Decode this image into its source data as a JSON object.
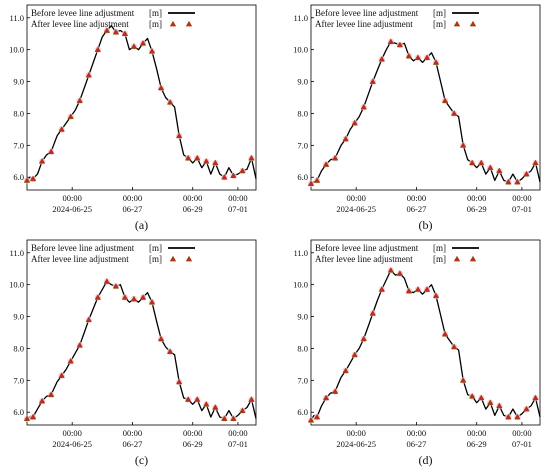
{
  "figure": {
    "panels": [
      "(a)",
      "(b)",
      "(c)",
      "(d)"
    ]
  },
  "chart_data": [
    {
      "type": "line",
      "panel_label": "(a)",
      "panel_letter": "a",
      "legend": {
        "placement": "top-left",
        "entries": [
          {
            "label": "Before levee line adjustment",
            "unit": "[m]",
            "marker": "line",
            "color": "#000000"
          },
          {
            "label": "After levee line adjustment",
            "unit": "[m]",
            "marker": "triangle",
            "color": "#cc2222"
          }
        ]
      },
      "ylim": [
        5.6,
        11.4
      ],
      "yticks": [
        "6.0",
        "7.0",
        "8.0",
        "9.0",
        "10.0",
        "11.0"
      ],
      "xlim": [
        0,
        7.6
      ],
      "xticks": [
        {
          "at": 1.5,
          "time": "00:00",
          "date": "2024-06-25"
        },
        {
          "at": 3.5,
          "time": "00:00",
          "date": "06-27"
        },
        {
          "at": 5.5,
          "time": "00:00",
          "date": "06-29"
        },
        {
          "at": 7.0,
          "time": "00:00",
          "date": "07-01"
        }
      ],
      "grid": false,
      "series": [
        {
          "name": "Before levee line adjustment",
          "style": "line",
          "x": [
            0.0,
            0.1,
            0.2,
            0.35,
            0.5,
            0.65,
            0.8,
            1.0,
            1.15,
            1.3,
            1.45,
            1.6,
            1.75,
            1.9,
            2.05,
            2.2,
            2.35,
            2.5,
            2.65,
            2.8,
            2.95,
            3.1,
            3.25,
            3.4,
            3.55,
            3.7,
            3.85,
            4.0,
            4.15,
            4.3,
            4.45,
            4.6,
            4.75,
            4.9,
            5.05,
            5.2,
            5.35,
            5.5,
            5.65,
            5.8,
            5.95,
            6.1,
            6.25,
            6.4,
            6.55,
            6.7,
            6.85,
            7.0,
            7.15,
            7.3,
            7.45,
            7.6
          ],
          "y": [
            5.9,
            6.0,
            5.95,
            6.1,
            6.5,
            6.7,
            6.8,
            7.3,
            7.5,
            7.7,
            7.9,
            8.1,
            8.4,
            8.8,
            9.2,
            9.6,
            10.0,
            10.4,
            10.6,
            10.75,
            10.55,
            10.6,
            10.5,
            10.0,
            10.1,
            10.0,
            10.2,
            10.35,
            9.95,
            9.4,
            8.8,
            8.5,
            8.35,
            8.2,
            7.3,
            6.7,
            6.6,
            6.45,
            6.6,
            6.3,
            6.5,
            6.1,
            6.45,
            6.1,
            6.0,
            6.3,
            6.05,
            6.1,
            6.2,
            6.25,
            6.6,
            5.95
          ]
        },
        {
          "name": "After levee line adjustment",
          "style": "triangles",
          "x": [
            0.0,
            0.2,
            0.5,
            0.8,
            1.15,
            1.45,
            1.75,
            2.05,
            2.35,
            2.65,
            2.95,
            3.25,
            3.55,
            3.85,
            4.15,
            4.45,
            4.75,
            5.05,
            5.35,
            5.65,
            5.95,
            6.25,
            6.55,
            6.85,
            7.15,
            7.45
          ],
          "y": [
            5.9,
            5.95,
            6.5,
            6.8,
            7.5,
            7.9,
            8.4,
            9.2,
            10.0,
            10.6,
            10.55,
            10.5,
            10.1,
            10.2,
            9.95,
            8.8,
            8.35,
            7.3,
            6.6,
            6.6,
            6.5,
            6.45,
            6.0,
            6.05,
            6.2,
            6.6
          ]
        }
      ]
    },
    {
      "type": "line",
      "panel_label": "(b)",
      "panel_letter": "b",
      "legend": {
        "placement": "top-left",
        "entries": [
          {
            "label": "Before levee line adjustment",
            "unit": "[m]",
            "marker": "line",
            "color": "#000000"
          },
          {
            "label": "After levee line adjustment",
            "unit": "[m]",
            "marker": "triangle",
            "color": "#cc2222"
          }
        ]
      },
      "ylim": [
        5.6,
        11.4
      ],
      "yticks": [
        "6.0",
        "7.0",
        "8.0",
        "9.0",
        "10.0",
        "11.0"
      ],
      "xlim": [
        0,
        7.6
      ],
      "xticks": [
        {
          "at": 1.5,
          "time": "00:00",
          "date": "2024-06-25"
        },
        {
          "at": 3.5,
          "time": "00:00",
          "date": "06-27"
        },
        {
          "at": 5.5,
          "time": "00:00",
          "date": "06-29"
        },
        {
          "at": 7.0,
          "time": "00:00",
          "date": "07-01"
        }
      ],
      "grid": false,
      "series": [
        {
          "name": "Before levee line adjustment",
          "style": "line",
          "x": [
            0.0,
            0.1,
            0.2,
            0.35,
            0.5,
            0.65,
            0.8,
            1.0,
            1.15,
            1.3,
            1.45,
            1.6,
            1.75,
            1.9,
            2.05,
            2.2,
            2.35,
            2.5,
            2.65,
            2.8,
            2.95,
            3.1,
            3.25,
            3.4,
            3.55,
            3.7,
            3.85,
            4.0,
            4.15,
            4.3,
            4.45,
            4.6,
            4.75,
            4.9,
            5.05,
            5.2,
            5.35,
            5.5,
            5.65,
            5.8,
            5.95,
            6.1,
            6.25,
            6.4,
            6.55,
            6.7,
            6.85,
            7.0,
            7.15,
            7.3,
            7.45,
            7.6
          ],
          "y": [
            5.8,
            5.85,
            5.9,
            6.2,
            6.4,
            6.55,
            6.6,
            7.0,
            7.2,
            7.5,
            7.7,
            7.9,
            8.2,
            8.6,
            9.0,
            9.35,
            9.7,
            10.0,
            10.25,
            10.2,
            10.15,
            10.2,
            9.8,
            9.65,
            9.75,
            9.6,
            9.75,
            9.9,
            9.6,
            9.0,
            8.4,
            8.2,
            8.0,
            7.9,
            7.0,
            6.55,
            6.45,
            6.3,
            6.45,
            6.1,
            6.3,
            5.9,
            6.2,
            5.9,
            5.85,
            6.1,
            5.85,
            5.95,
            6.1,
            6.2,
            6.45,
            5.85
          ]
        },
        {
          "name": "After levee line adjustment",
          "style": "triangles",
          "x": [
            0.0,
            0.2,
            0.5,
            0.8,
            1.15,
            1.45,
            1.75,
            2.05,
            2.35,
            2.65,
            2.95,
            3.25,
            3.55,
            3.85,
            4.15,
            4.45,
            4.75,
            5.05,
            5.35,
            5.65,
            5.95,
            6.25,
            6.55,
            6.85,
            7.15,
            7.45
          ],
          "y": [
            5.8,
            5.9,
            6.4,
            6.6,
            7.2,
            7.7,
            8.2,
            9.0,
            9.7,
            10.25,
            10.15,
            9.8,
            9.75,
            9.75,
            9.6,
            8.4,
            8.0,
            7.0,
            6.45,
            6.45,
            6.3,
            6.2,
            5.85,
            5.85,
            6.1,
            6.45
          ]
        }
      ]
    },
    {
      "type": "line",
      "panel_label": "(c)",
      "panel_letter": "c",
      "legend": {
        "placement": "top-left",
        "entries": [
          {
            "label": "Before levee line adjustment",
            "unit": "[m]",
            "marker": "line",
            "color": "#000000"
          },
          {
            "label": "After levee line adjustment",
            "unit": "[m]",
            "marker": "triangle",
            "color": "#cc2222"
          }
        ]
      },
      "ylim": [
        5.6,
        11.4
      ],
      "yticks": [
        "6.0",
        "7.0",
        "8.0",
        "9.0",
        "10.0",
        "11.0"
      ],
      "xlim": [
        0,
        7.6
      ],
      "xticks": [
        {
          "at": 1.5,
          "time": "00:00",
          "date": "2024-06-25"
        },
        {
          "at": 3.5,
          "time": "00:00",
          "date": "06-27"
        },
        {
          "at": 5.5,
          "time": "00:00",
          "date": "06-29"
        },
        {
          "at": 7.0,
          "time": "00:00",
          "date": "07-01"
        }
      ],
      "grid": false,
      "series": [
        {
          "name": "Before levee line adjustment",
          "style": "line",
          "x": [
            0.0,
            0.1,
            0.2,
            0.35,
            0.5,
            0.65,
            0.8,
            1.0,
            1.15,
            1.3,
            1.45,
            1.6,
            1.75,
            1.9,
            2.05,
            2.2,
            2.35,
            2.5,
            2.65,
            2.8,
            2.95,
            3.1,
            3.25,
            3.4,
            3.55,
            3.7,
            3.85,
            4.0,
            4.15,
            4.3,
            4.45,
            4.6,
            4.75,
            4.9,
            5.05,
            5.2,
            5.35,
            5.5,
            5.65,
            5.8,
            5.95,
            6.1,
            6.25,
            6.4,
            6.55,
            6.7,
            6.85,
            7.0,
            7.15,
            7.3,
            7.45,
            7.6
          ],
          "y": [
            5.8,
            5.85,
            5.85,
            6.1,
            6.35,
            6.5,
            6.55,
            6.95,
            7.15,
            7.35,
            7.6,
            7.85,
            8.1,
            8.5,
            8.9,
            9.25,
            9.6,
            9.85,
            10.1,
            10.0,
            9.95,
            10.0,
            9.6,
            9.45,
            9.55,
            9.45,
            9.6,
            9.75,
            9.45,
            8.85,
            8.3,
            8.05,
            7.9,
            7.8,
            6.95,
            6.45,
            6.4,
            6.25,
            6.4,
            6.05,
            6.25,
            5.85,
            6.15,
            5.85,
            5.8,
            6.05,
            5.8,
            5.9,
            6.05,
            6.15,
            6.4,
            5.8
          ]
        },
        {
          "name": "After levee line adjustment",
          "style": "triangles",
          "x": [
            0.0,
            0.2,
            0.5,
            0.8,
            1.15,
            1.45,
            1.75,
            2.05,
            2.35,
            2.65,
            2.95,
            3.25,
            3.55,
            3.85,
            4.15,
            4.45,
            4.75,
            5.05,
            5.35,
            5.65,
            5.95,
            6.25,
            6.55,
            6.85,
            7.15,
            7.45
          ],
          "y": [
            5.8,
            5.85,
            6.35,
            6.55,
            7.15,
            7.6,
            8.1,
            8.9,
            9.6,
            10.1,
            9.95,
            9.6,
            9.55,
            9.6,
            9.45,
            8.3,
            7.9,
            6.95,
            6.4,
            6.4,
            6.25,
            6.15,
            5.8,
            5.8,
            6.05,
            6.4
          ]
        }
      ]
    },
    {
      "type": "line",
      "panel_label": "(d)",
      "panel_letter": "d",
      "legend": {
        "placement": "top-left",
        "entries": [
          {
            "label": "Before levee line adjustment",
            "unit": "[m]",
            "marker": "line",
            "color": "#000000"
          },
          {
            "label": "After levee line adjustment",
            "unit": "[m]",
            "marker": "triangle",
            "color": "#cc2222"
          }
        ]
      },
      "ylim": [
        5.6,
        11.4
      ],
      "yticks": [
        "6.0",
        "7.0",
        "8.0",
        "9.0",
        "10.0",
        "11.0"
      ],
      "xlim": [
        0,
        7.6
      ],
      "xticks": [
        {
          "at": 1.5,
          "time": "00:00",
          "date": "2024-06-25"
        },
        {
          "at": 3.5,
          "time": "00:00",
          "date": "06-27"
        },
        {
          "at": 5.5,
          "time": "00:00",
          "date": "06-29"
        },
        {
          "at": 7.0,
          "time": "00:00",
          "date": "07-01"
        }
      ],
      "grid": false,
      "series": [
        {
          "name": "Before levee line adjustment",
          "style": "line",
          "x": [
            0.0,
            0.1,
            0.2,
            0.35,
            0.5,
            0.65,
            0.8,
            1.0,
            1.15,
            1.3,
            1.45,
            1.6,
            1.75,
            1.9,
            2.05,
            2.2,
            2.35,
            2.5,
            2.65,
            2.8,
            2.95,
            3.1,
            3.25,
            3.4,
            3.55,
            3.7,
            3.85,
            4.0,
            4.15,
            4.3,
            4.45,
            4.6,
            4.75,
            4.9,
            5.05,
            5.2,
            5.35,
            5.5,
            5.65,
            5.8,
            5.95,
            6.1,
            6.25,
            6.4,
            6.55,
            6.7,
            6.85,
            7.0,
            7.15,
            7.3,
            7.45,
            7.6
          ],
          "y": [
            5.75,
            5.9,
            5.85,
            6.2,
            6.45,
            6.6,
            6.65,
            7.1,
            7.3,
            7.55,
            7.8,
            8.0,
            8.3,
            8.7,
            9.1,
            9.5,
            9.85,
            10.15,
            10.45,
            10.3,
            10.35,
            10.2,
            9.8,
            9.75,
            9.85,
            9.7,
            9.85,
            10.0,
            9.65,
            9.05,
            8.45,
            8.25,
            8.05,
            7.95,
            7.0,
            6.55,
            6.5,
            6.3,
            6.45,
            6.1,
            6.3,
            5.9,
            6.2,
            5.9,
            5.85,
            6.1,
            5.85,
            5.95,
            6.1,
            6.2,
            6.45,
            5.85
          ]
        },
        {
          "name": "After levee line adjustment",
          "style": "triangles",
          "x": [
            0.0,
            0.2,
            0.5,
            0.8,
            1.15,
            1.45,
            1.75,
            2.05,
            2.35,
            2.65,
            2.95,
            3.25,
            3.55,
            3.85,
            4.15,
            4.45,
            4.75,
            5.05,
            5.35,
            5.65,
            5.95,
            6.25,
            6.55,
            6.85,
            7.15,
            7.45
          ],
          "y": [
            5.75,
            5.85,
            6.45,
            6.65,
            7.3,
            7.8,
            8.3,
            9.1,
            9.85,
            10.45,
            10.35,
            9.8,
            9.85,
            9.85,
            9.65,
            8.45,
            8.05,
            7.0,
            6.5,
            6.45,
            6.3,
            6.2,
            5.85,
            5.85,
            6.1,
            6.45
          ]
        }
      ]
    }
  ]
}
